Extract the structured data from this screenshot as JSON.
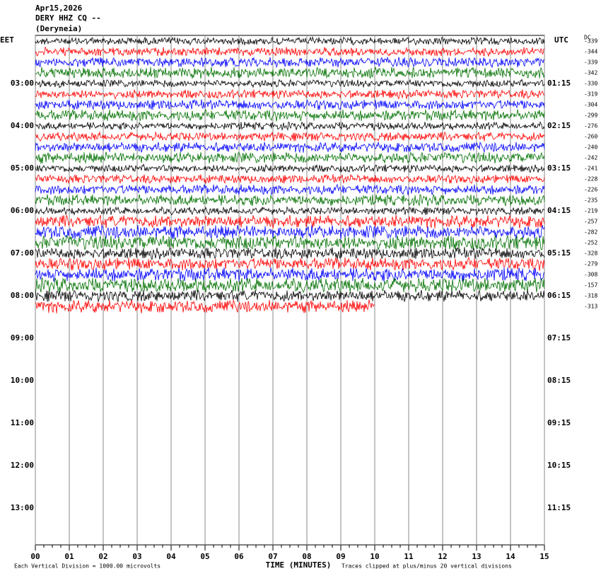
{
  "header": {
    "date": "Apr15,2026",
    "station": "DERY HHZ CQ --",
    "location": "(Deryneia)"
  },
  "chart_data": {
    "type": "helicorder",
    "left_zone": "EET",
    "right_zone": "UTC",
    "offset_header": "DC",
    "left_labels": [
      "03:00",
      "04:00",
      "05:00",
      "06:00",
      "07:00",
      "08:00",
      "09:00",
      "10:00",
      "11:00",
      "12:00",
      "13:00"
    ],
    "right_labels": [
      "01:15",
      "02:15",
      "03:15",
      "04:15",
      "05:15",
      "06:15",
      "07:15",
      "08:15",
      "09:15",
      "10:15",
      "11:15"
    ],
    "trace_colors": [
      "#000000",
      "#ff0000",
      "#0000ff",
      "#007000"
    ],
    "offsets": [
      -339,
      -344,
      -339,
      -342,
      -330,
      -319,
      -304,
      -299,
      -276,
      -260,
      -240,
      -242,
      -241,
      -228,
      -226,
      -235,
      -219,
      -257,
      -282,
      -252,
      -328,
      -279,
      -308,
      -157,
      -318,
      -313
    ],
    "last_trace_end": 10,
    "xlim": [
      0,
      15
    ],
    "xticks": [
      {
        "value": 0,
        "label": "00"
      },
      {
        "value": 1,
        "label": "01"
      },
      {
        "value": 2,
        "label": "02"
      },
      {
        "value": 3,
        "label": "03"
      },
      {
        "value": 4,
        "label": "04"
      },
      {
        "value": 5,
        "label": "05"
      },
      {
        "value": 6,
        "label": "06"
      },
      {
        "value": 7,
        "label": "07"
      },
      {
        "value": 8,
        "label": "08"
      },
      {
        "value": 9,
        "label": "09"
      },
      {
        "value": 10,
        "label": "10"
      },
      {
        "value": 11,
        "label": "11"
      },
      {
        "value": 12,
        "label": "12"
      },
      {
        "value": 13,
        "label": "13"
      },
      {
        "value": 14,
        "label": "14"
      },
      {
        "value": 15,
        "label": "15"
      }
    ],
    "xlabel": "TIME (MINUTES)",
    "scale_note": "Each Vertical Division = 1000.00 microvolts",
    "clip_note": "Traces clipped at plus/minus 20 vertical divisions"
  }
}
